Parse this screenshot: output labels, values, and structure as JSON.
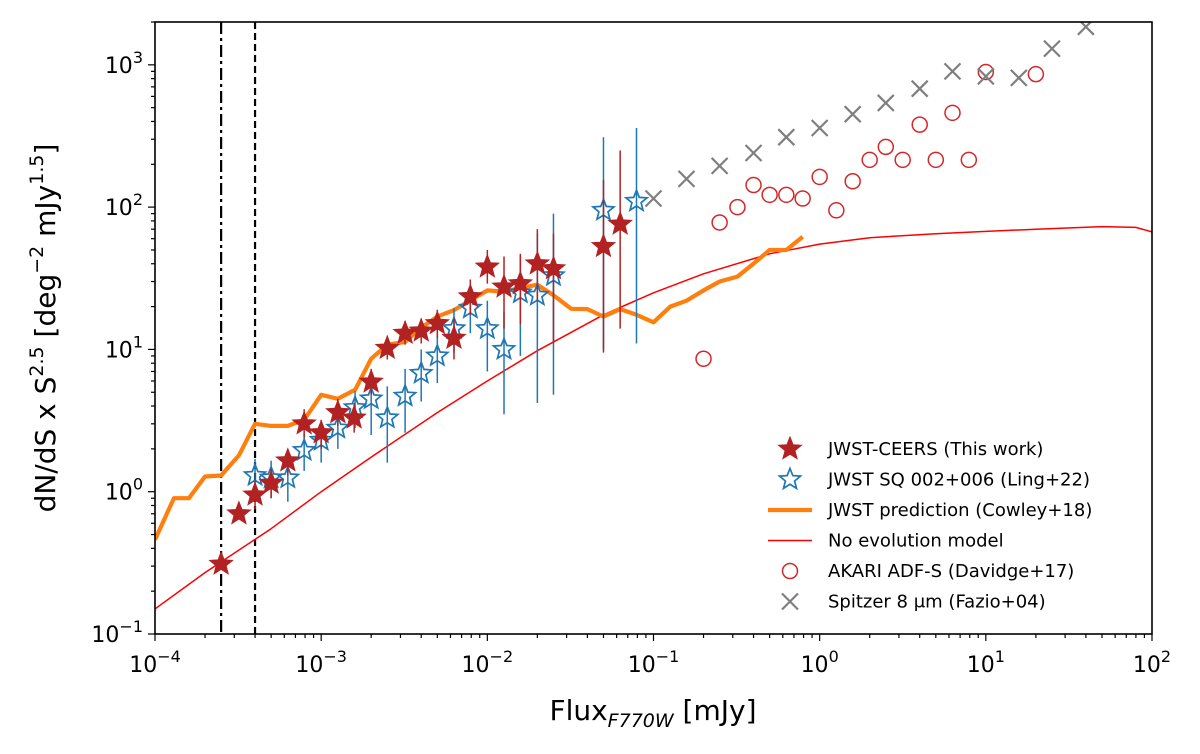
{
  "chart_data": {
    "type": "scatter",
    "xscale": "log",
    "yscale": "log",
    "xlim": [
      0.0001,
      100
    ],
    "ylim": [
      0.1,
      2000
    ],
    "xlabel": {
      "main": "Flux",
      "sub": "F770W",
      "unit": " [mJy]"
    },
    "ylabel": {
      "p1": "dN/dS x S",
      "sup1": "2.5",
      "p2": " [deg",
      "sup2": "−2",
      "p3": " mJy",
      "sup3": "1.5",
      "p4": "]"
    },
    "xticks": [
      {
        "value": 0.0001,
        "base": "10",
        "exp": "−4"
      },
      {
        "value": 0.001,
        "base": "10",
        "exp": "−3"
      },
      {
        "value": 0.01,
        "base": "10",
        "exp": "−2"
      },
      {
        "value": 0.1,
        "base": "10",
        "exp": "−1"
      },
      {
        "value": 1,
        "base": "10",
        "exp": "0"
      },
      {
        "value": 10,
        "base": "10",
        "exp": "1"
      },
      {
        "value": 100,
        "base": "10",
        "exp": "2"
      }
    ],
    "yticks": [
      {
        "value": 0.1,
        "base": "10",
        "exp": "−1"
      },
      {
        "value": 1,
        "base": "10",
        "exp": "0"
      },
      {
        "value": 10,
        "base": "10",
        "exp": "1"
      },
      {
        "value": 100,
        "base": "10",
        "exp": "2"
      },
      {
        "value": 1000,
        "base": "10",
        "exp": "3"
      }
    ],
    "vlines": [
      {
        "x": 0.00025,
        "style": "dashdot"
      },
      {
        "x": 0.0004,
        "style": "dashed"
      }
    ],
    "series": [
      {
        "name": "JWST-CEERS (This work)",
        "marker": "filled-star",
        "color": "#b22222",
        "points": [
          {
            "x": 0.00025,
            "y": 0.31
          },
          {
            "x": 0.00032,
            "y": 0.7
          },
          {
            "x": 0.0004,
            "y": 0.95,
            "err": [
              0.75,
              1.2
            ]
          },
          {
            "x": 0.0005,
            "y": 1.15,
            "err": [
              0.9,
              1.45
            ]
          },
          {
            "x": 0.00063,
            "y": 1.65,
            "err": [
              1.3,
              2.0
            ]
          },
          {
            "x": 0.00079,
            "y": 3.0,
            "err": [
              2.4,
              3.8
            ]
          },
          {
            "x": 0.001,
            "y": 2.6,
            "err": [
              2.0,
              3.2
            ]
          },
          {
            "x": 0.00126,
            "y": 3.6,
            "err": [
              2.9,
              4.5
            ]
          },
          {
            "x": 0.00158,
            "y": 3.3,
            "err": [
              2.6,
              4.2
            ]
          },
          {
            "x": 0.002,
            "y": 5.9,
            "err": [
              4.8,
              7.3
            ]
          },
          {
            "x": 0.0025,
            "y": 10.2,
            "err": [
              8.5,
              12.5
            ]
          },
          {
            "x": 0.0032,
            "y": 13.0,
            "err": [
              10.8,
              15.8
            ]
          },
          {
            "x": 0.004,
            "y": 13.5,
            "err": [
              11.0,
              16.5
            ]
          },
          {
            "x": 0.005,
            "y": 15.2,
            "err": [
              12.0,
              19.0
            ]
          },
          {
            "x": 0.0063,
            "y": 12.0,
            "err": [
              8.5,
              16.5
            ]
          },
          {
            "x": 0.0079,
            "y": 23.5,
            "err": [
              17.5,
              31.0
            ]
          },
          {
            "x": 0.01,
            "y": 38.0,
            "err": [
              29.0,
              50.0
            ]
          },
          {
            "x": 0.0126,
            "y": 27.5,
            "err": [
              14.0,
              45.0
            ]
          },
          {
            "x": 0.0158,
            "y": 29.0,
            "err": [
              15.0,
              47.0
            ]
          },
          {
            "x": 0.02,
            "y": 40.0,
            "err": [
              22.0,
              70.0
            ]
          },
          {
            "x": 0.025,
            "y": 37.0,
            "err": [
              11.0,
              65.0
            ]
          },
          {
            "x": 0.05,
            "y": 53.0,
            "err": [
              9.5,
              155.0
            ]
          },
          {
            "x": 0.063,
            "y": 76.0,
            "err": [
              14.0,
              250.0
            ]
          }
        ]
      },
      {
        "name": "JWST SQ 002+006 (Ling+22)",
        "marker": "open-star",
        "color": "#1f77b4",
        "points": [
          {
            "x": 0.0004,
            "y": 1.3,
            "err": [
              0.9,
              1.7
            ]
          },
          {
            "x": 0.0005,
            "y": 1.25,
            "err": [
              0.9,
              1.65
            ]
          },
          {
            "x": 0.00063,
            "y": 1.25,
            "err": [
              0.85,
              1.7
            ]
          },
          {
            "x": 0.00079,
            "y": 1.95,
            "err": [
              1.4,
              2.6
            ]
          },
          {
            "x": 0.001,
            "y": 2.3,
            "err": [
              1.6,
              3.0
            ]
          },
          {
            "x": 0.00126,
            "y": 2.8,
            "err": [
              2.0,
              3.7
            ]
          },
          {
            "x": 0.0016,
            "y": 3.9,
            "err": [
              2.8,
              5.1
            ]
          },
          {
            "x": 0.002,
            "y": 4.5,
            "err": [
              2.5,
              7.0
            ]
          },
          {
            "x": 0.0025,
            "y": 3.3,
            "err": [
              1.6,
              5.5
            ]
          },
          {
            "x": 0.0032,
            "y": 4.7,
            "err": [
              2.6,
              7.3
            ]
          },
          {
            "x": 0.004,
            "y": 6.8,
            "err": [
              4.3,
              10.0
            ]
          },
          {
            "x": 0.005,
            "y": 9.0,
            "err": [
              5.8,
              13.0
            ]
          },
          {
            "x": 0.0063,
            "y": 14.0,
            "err": [
              9.5,
              19.5
            ]
          },
          {
            "x": 0.0079,
            "y": 19.5,
            "err": [
              13.0,
              27.0
            ]
          },
          {
            "x": 0.01,
            "y": 14.0,
            "err": [
              7.0,
              22.0
            ]
          },
          {
            "x": 0.0126,
            "y": 10.0,
            "err": [
              3.5,
              18.5
            ]
          },
          {
            "x": 0.0158,
            "y": 25.0,
            "err": [
              9.0,
              45.0
            ]
          },
          {
            "x": 0.02,
            "y": 24.0,
            "err": [
              4.2,
              65.0
            ]
          },
          {
            "x": 0.025,
            "y": 33.0,
            "err": [
              4.8,
              90.0
            ]
          },
          {
            "x": 0.05,
            "y": 95.0,
            "err": [
              10.0,
              310.0
            ]
          },
          {
            "x": 0.079,
            "y": 110.0,
            "err": [
              11.0,
              360.0
            ]
          }
        ]
      },
      {
        "name": "JWST prediction (Cowley+18)",
        "marker": "line",
        "color": "#ff7f0e",
        "x": [
          0.0001,
          0.00013,
          0.00016,
          0.0002,
          0.00025,
          0.00032,
          0.0004,
          0.0005,
          0.00063,
          0.00079,
          0.001,
          0.00126,
          0.0016,
          0.002,
          0.0025,
          0.0032,
          0.004,
          0.005,
          0.0063,
          0.0079,
          0.01,
          0.0126,
          0.0158,
          0.02,
          0.025,
          0.032,
          0.04,
          0.05,
          0.063,
          0.079,
          0.1,
          0.126,
          0.158,
          0.2,
          0.25,
          0.32,
          0.4,
          0.5,
          0.63,
          0.79
        ],
        "y": [
          0.46,
          0.9,
          0.9,
          1.28,
          1.3,
          1.8,
          3.0,
          2.9,
          2.9,
          3.2,
          4.8,
          4.5,
          5.2,
          8.6,
          10.8,
          11.3,
          14.2,
          17.0,
          18.9,
          22.1,
          26.0,
          25.5,
          27.0,
          28.5,
          24.0,
          19.3,
          19.2,
          17.0,
          19.2,
          17.5,
          15.5,
          20.0,
          22.0,
          26.0,
          30.0,
          32.5,
          40.0,
          50.0,
          50.0,
          62.0
        ]
      },
      {
        "name": "No evolution model",
        "marker": "thin-line",
        "color": "#ff0000",
        "x": [
          0.0001,
          0.0002,
          0.0005,
          0.001,
          0.002,
          0.005,
          0.01,
          0.02,
          0.05,
          0.1,
          0.2,
          0.5,
          1,
          2,
          5,
          10,
          20,
          50,
          80,
          100
        ],
        "y": [
          0.15,
          0.27,
          0.55,
          1.0,
          1.75,
          3.6,
          6.0,
          9.8,
          17.5,
          25.0,
          34.0,
          47.0,
          55.0,
          61.0,
          65.0,
          67.5,
          70.0,
          73.0,
          72.0,
          67.0
        ]
      },
      {
        "name": "AKARI ADF-S (Davidge+17)",
        "marker": "open-circle",
        "color": "#d62728",
        "points": [
          {
            "x": 0.2,
            "y": 8.6
          },
          {
            "x": 0.25,
            "y": 78.0
          },
          {
            "x": 0.32,
            "y": 100.0
          },
          {
            "x": 0.4,
            "y": 143.0
          },
          {
            "x": 0.5,
            "y": 122.0
          },
          {
            "x": 0.63,
            "y": 122.0
          },
          {
            "x": 0.79,
            "y": 115.0
          },
          {
            "x": 1.0,
            "y": 163.0
          },
          {
            "x": 1.26,
            "y": 95.0
          },
          {
            "x": 1.58,
            "y": 152.0
          },
          {
            "x": 2.0,
            "y": 215.0
          },
          {
            "x": 2.5,
            "y": 265.0
          },
          {
            "x": 3.16,
            "y": 215.0
          },
          {
            "x": 4.0,
            "y": 380.0
          },
          {
            "x": 5.0,
            "y": 215.0
          },
          {
            "x": 6.3,
            "y": 460.0
          },
          {
            "x": 7.9,
            "y": 215.0
          },
          {
            "x": 10.0,
            "y": 890.0
          },
          {
            "x": 20.0,
            "y": 860.0
          }
        ]
      },
      {
        "name": "Spitzer 8 μm (Fazio+04)",
        "marker": "x",
        "color": "#7f7f7f",
        "points": [
          {
            "x": 0.1,
            "y": 115.0
          },
          {
            "x": 0.158,
            "y": 158.0
          },
          {
            "x": 0.25,
            "y": 195.0
          },
          {
            "x": 0.4,
            "y": 240.0
          },
          {
            "x": 0.63,
            "y": 310.0
          },
          {
            "x": 1.0,
            "y": 360.0
          },
          {
            "x": 1.58,
            "y": 450.0
          },
          {
            "x": 2.5,
            "y": 540.0
          },
          {
            "x": 4.0,
            "y": 680.0
          },
          {
            "x": 6.3,
            "y": 900.0
          },
          {
            "x": 10.0,
            "y": 830.0
          },
          {
            "x": 15.8,
            "y": 810.0
          },
          {
            "x": 25.0,
            "y": 1300.0
          },
          {
            "x": 40.0,
            "y": 1850.0
          }
        ]
      }
    ]
  }
}
